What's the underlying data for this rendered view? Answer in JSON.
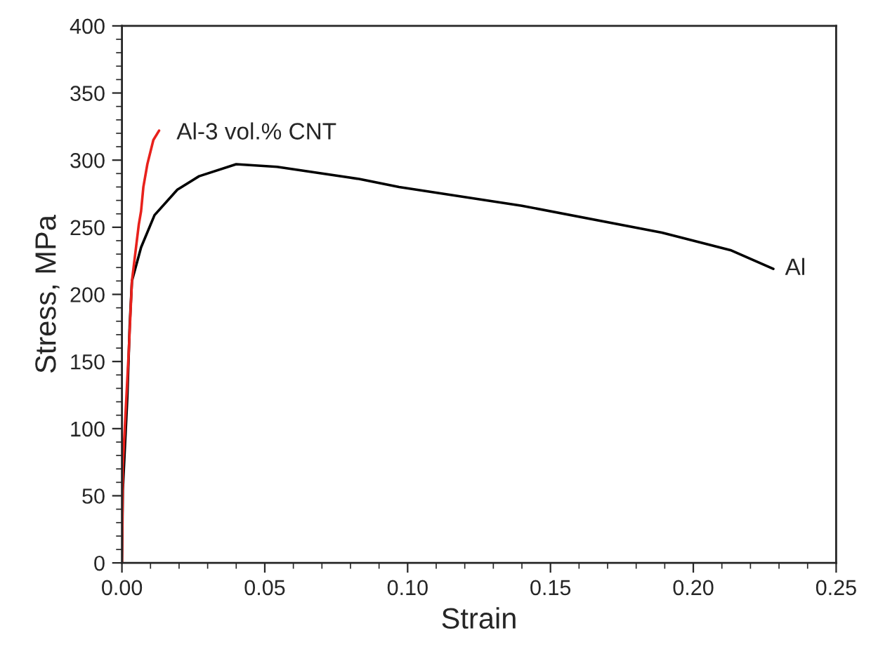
{
  "chart_data": {
    "type": "line",
    "xlabel": "Strain",
    "ylabel": "Stress, MPa",
    "xlim": [
      0,
      0.25
    ],
    "ylim": [
      0,
      400
    ],
    "xticks": [
      {
        "value": 0,
        "label": "0.00"
      },
      {
        "value": 0.05,
        "label": "0.05"
      },
      {
        "value": 0.1,
        "label": "0.10"
      },
      {
        "value": 0.15,
        "label": "0.15"
      },
      {
        "value": 0.2,
        "label": "0.20"
      },
      {
        "value": 0.25,
        "label": "0.25"
      }
    ],
    "yticks": [
      0,
      50,
      100,
      150,
      200,
      250,
      300,
      350,
      400
    ],
    "grid": false,
    "legend": false,
    "marker": "none",
    "line_style": "solid",
    "series": [
      {
        "color": "#000000",
        "x": [
          0,
          0.0003,
          0.0019,
          0.0027,
          0.0035,
          0.0067,
          0.0114,
          0.0194,
          0.027,
          0.04,
          0.0543,
          0.083,
          0.097,
          0.14,
          0.189,
          0.213,
          0.228
        ],
        "values": [
          0,
          54,
          124,
          176,
          210,
          235,
          259,
          278,
          288,
          297,
          295,
          286,
          280,
          266,
          246,
          233,
          219
        ]
      },
      {
        "color": "#e8211c",
        "x": [
          0,
          0.0003,
          0.0024,
          0.0035,
          0.0059,
          0.0067,
          0.0075,
          0.0089,
          0.011,
          0.013
        ],
        "values": [
          0,
          72,
          158,
          210,
          252,
          262,
          280,
          297,
          315,
          322
        ]
      }
    ],
    "annotations": [
      {
        "text": "Al-3 vol.% CNT",
        "x": 0.015,
        "y": 320
      },
      {
        "text": "Al",
        "x": 0.228,
        "y": 219
      }
    ]
  }
}
